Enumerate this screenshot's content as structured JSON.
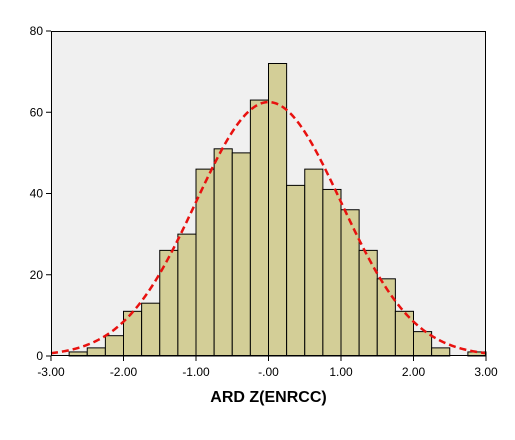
{
  "chart_data": {
    "type": "bar",
    "subtype": "histogram",
    "title": "",
    "xlabel": "ARD Z(ENRCC)",
    "ylabel": "",
    "xlim": [
      -3.0,
      3.0
    ],
    "ylim": [
      0,
      80
    ],
    "x_ticks": [
      -3.0,
      -2.0,
      -1.0,
      0.0,
      1.0,
      2.0,
      3.0
    ],
    "x_tick_labels": [
      "-3.00",
      "-2.00",
      "-1.00",
      "-.00",
      "1.00",
      "2.00",
      "3.00"
    ],
    "y_ticks": [
      0,
      20,
      40,
      60,
      80
    ],
    "y_tick_labels": [
      "0",
      "20",
      "40",
      "60",
      "80"
    ],
    "grid": false,
    "legend": "none",
    "bin_width": 0.25,
    "bins": [
      {
        "x0": -3.0,
        "count": 0
      },
      {
        "x0": -2.75,
        "count": 1
      },
      {
        "x0": -2.5,
        "count": 2
      },
      {
        "x0": -2.25,
        "count": 5
      },
      {
        "x0": -2.0,
        "count": 11
      },
      {
        "x0": -1.75,
        "count": 13
      },
      {
        "x0": -1.5,
        "count": 26
      },
      {
        "x0": -1.25,
        "count": 30
      },
      {
        "x0": -1.0,
        "count": 46
      },
      {
        "x0": -0.75,
        "count": 51
      },
      {
        "x0": -0.5,
        "count": 50
      },
      {
        "x0": -0.25,
        "count": 63
      },
      {
        "x0": 0.0,
        "count": 72
      },
      {
        "x0": 0.25,
        "count": 42
      },
      {
        "x0": 0.5,
        "count": 46
      },
      {
        "x0": 0.75,
        "count": 41
      },
      {
        "x0": 1.0,
        "count": 36
      },
      {
        "x0": 1.25,
        "count": 26
      },
      {
        "x0": 1.5,
        "count": 19
      },
      {
        "x0": 1.75,
        "count": 11
      },
      {
        "x0": 2.0,
        "count": 6
      },
      {
        "x0": 2.25,
        "count": 2
      },
      {
        "x0": 2.5,
        "count": 0
      },
      {
        "x0": 2.75,
        "count": 1
      }
    ],
    "normal_curve": {
      "mean": 0.0,
      "sd": 1.0,
      "peak": 62.5
    },
    "colors": {
      "plot_background": "#f0f0f0",
      "bar_fill": "#d3ce97",
      "bar_stroke": "#000000",
      "curve": "#e8110f"
    }
  }
}
